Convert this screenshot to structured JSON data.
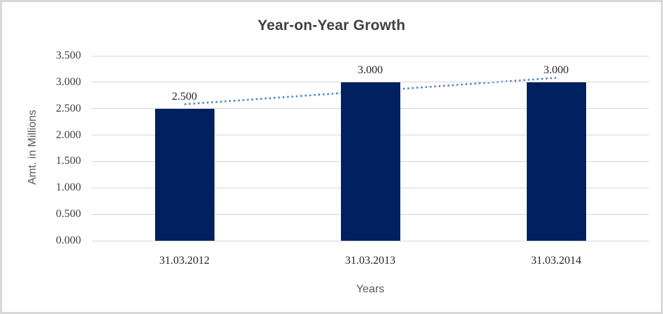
{
  "chart_data": {
    "type": "bar",
    "title": "Year-on-Year Growth",
    "categories": [
      "31.03.2012",
      "31.03.2013",
      "31.03.2014"
    ],
    "values": [
      2.5,
      3.0,
      3.0
    ],
    "data_labels": [
      "2.500",
      "3.000",
      "3.000"
    ],
    "xlabel": "Years",
    "ylabel": "Amt. in Millions",
    "ylim": [
      0,
      3.5
    ],
    "ytick_step": 0.5,
    "ytick_labels": [
      "0.000",
      "0.500",
      "1.000",
      "1.500",
      "2.000",
      "2.500",
      "3.000",
      "3.500"
    ],
    "grid": true,
    "legend": false,
    "trendline": {
      "type": "linear",
      "style": "dotted"
    },
    "colors": {
      "bar": "#002060",
      "trendline": "#4E86C8",
      "gridline": "#d6d6d6",
      "title_text": "#404040",
      "tick_text": "#404040",
      "axis_title_text": "#595959",
      "frame_border": "#d8d8d8"
    }
  }
}
